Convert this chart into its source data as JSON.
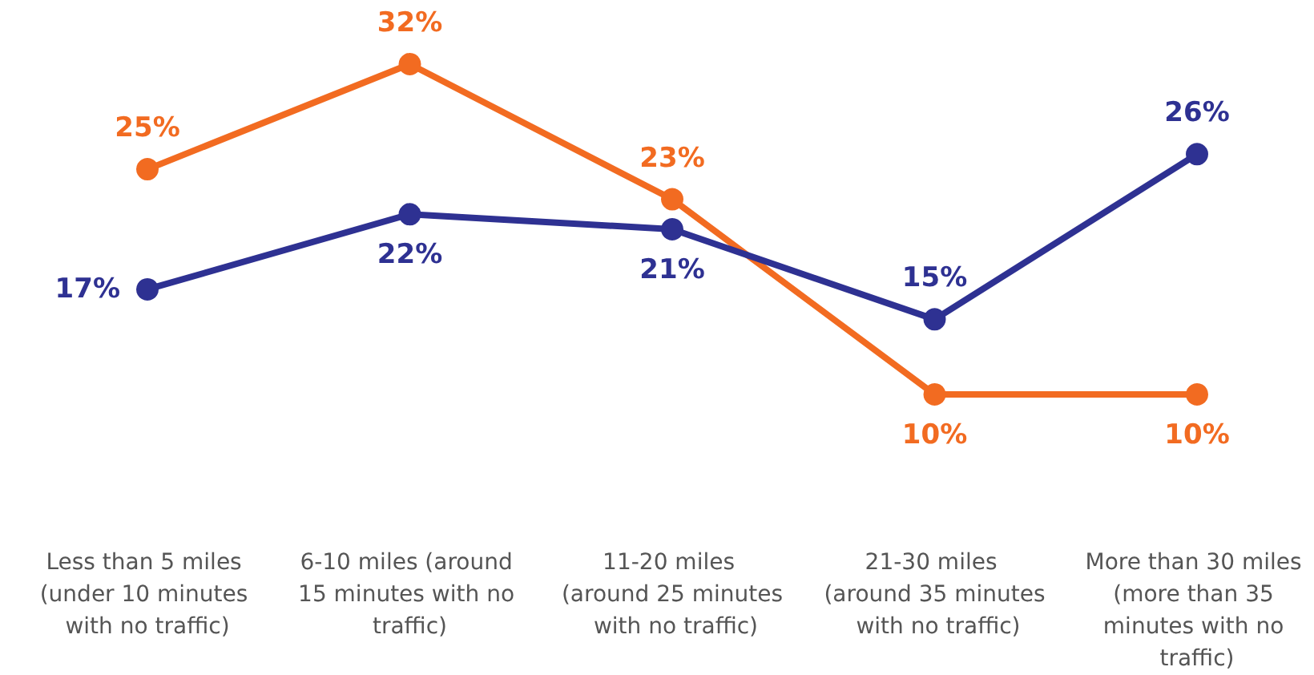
{
  "chart_data": {
    "type": "line",
    "categories": [
      "Less than 5 miles (under 10 minutes with no traffic)",
      "6-10 miles (around 15 minutes with no traffic)",
      "11-20 miles (around 25 minutes with no traffic)",
      "21-30 miles (around 35 minutes with no traffic)",
      "More than 30 miles (more than 35 minutes with no traffic)"
    ],
    "series": [
      {
        "color": "#f26b21",
        "values": [
          25,
          32,
          23,
          10,
          10
        ],
        "value_labels": [
          "25%",
          "32%",
          "23%",
          "10%",
          "10%"
        ]
      },
      {
        "color": "#2e3192",
        "values": [
          17,
          22,
          21,
          15,
          26
        ],
        "value_labels": [
          "17%",
          "22%",
          "21%",
          "15%",
          "26%"
        ]
      }
    ],
    "marker": "circle",
    "grid": false
  }
}
